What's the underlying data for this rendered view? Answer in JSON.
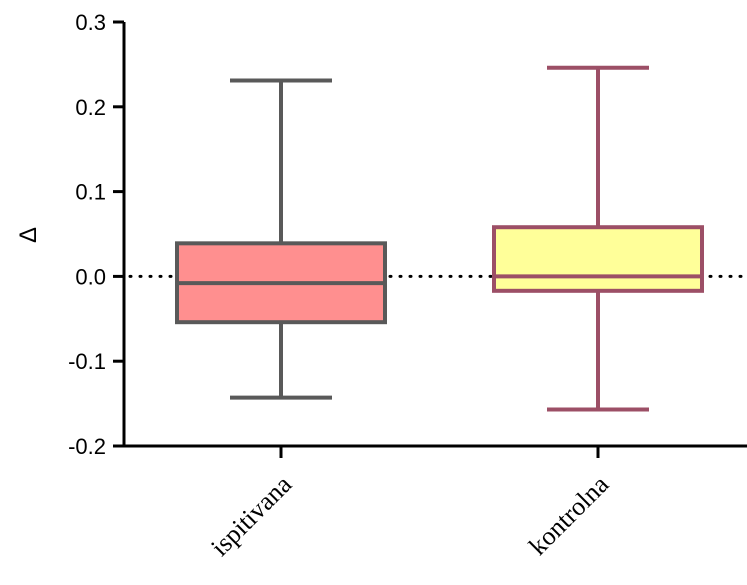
{
  "chart_data": {
    "type": "box",
    "title": "",
    "xlabel": "",
    "ylabel": "Δ",
    "ylim": [
      -0.2,
      0.3
    ],
    "yticks": [
      0.3,
      0.2,
      0.1,
      0.0,
      -0.1,
      -0.2
    ],
    "ytick_labels": [
      "0.3",
      "0.2",
      "0.1",
      "0.0",
      "-0.1",
      "-0.2"
    ],
    "reference_line": {
      "y": 0.0,
      "style": "dotted",
      "color": "#000000"
    },
    "grid": false,
    "categories": [
      "ispitivana",
      "kontrolna"
    ],
    "boxes": [
      {
        "category": "ispitivana",
        "min": -0.143,
        "q1": -0.054,
        "median": -0.008,
        "q3": 0.039,
        "max": 0.231,
        "fill": "#ff8f8f",
        "stroke": "#595959"
      },
      {
        "category": "kontrolna",
        "min": -0.157,
        "q1": -0.017,
        "median": 0.0,
        "q3": 0.058,
        "max": 0.246,
        "fill": "#ffff99",
        "stroke": "#9c4f66"
      }
    ]
  }
}
